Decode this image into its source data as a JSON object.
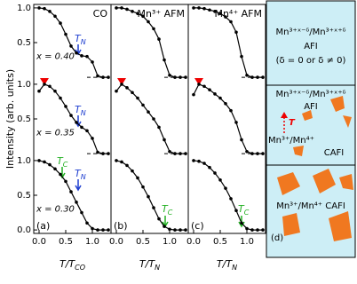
{
  "chart_data": [
    {
      "type": "line",
      "title": "CO",
      "panel_label": "(a)",
      "ylabel": "Intensity (arb. units)",
      "xlabel": {
        "text": "T/T",
        "sub": "CO"
      },
      "xlim": [
        -0.1,
        1.35
      ],
      "xticks": [
        {
          "value": 0,
          "label": "0.0"
        },
        0.5,
        {
          "value": 1,
          "label": "1.0"
        }
      ],
      "ylim": [
        -0.05,
        3.25
      ],
      "yticks": [
        {
          "value": 0,
          "label": "0.0"
        },
        0.5,
        {
          "value": 1,
          "label": "1.0"
        },
        {
          "value": 1.6,
          "label": "0.5"
        },
        {
          "value": 2.1,
          "label": "1.0"
        },
        {
          "value": 2.7,
          "label": "0.5"
        },
        {
          "value": 3.2,
          "label": "1.0"
        }
      ],
      "x": [
        0,
        0.1,
        0.2,
        0.3,
        0.4,
        0.5,
        0.6,
        0.7,
        0.8,
        0.9,
        1.0,
        1.1,
        1.2,
        1.3
      ],
      "series": [
        {
          "name": "x = 0.40",
          "color": "#000000",
          "offset": 2.2,
          "values": [
            1.0,
            0.99,
            0.95,
            0.88,
            0.78,
            0.62,
            0.45,
            0.35,
            0.31,
            0.3,
            0.22,
            0.02,
            0,
            0
          ]
        },
        {
          "name": "x = 0.35",
          "color": "#000000",
          "offset": 1.1,
          "values": [
            0.9,
            1.0,
            0.97,
            0.9,
            0.8,
            0.68,
            0.55,
            0.45,
            0.38,
            0.33,
            0.22,
            0.02,
            0,
            0
          ]
        },
        {
          "name": "x = 0.30",
          "color": "#000000",
          "offset": 0,
          "values": [
            1.0,
            0.98,
            0.94,
            0.88,
            0.8,
            0.7,
            0.55,
            0.4,
            0.25,
            0.1,
            0.02,
            0,
            0,
            0
          ]
        }
      ],
      "annotations": [
        {
          "text": "T",
          "sub": "N",
          "color": "#1f3fd0"
        },
        {
          "text": "T",
          "sub": "N",
          "color": "#1f3fd0"
        },
        {
          "text": "T",
          "sub": "C",
          "color": "#22b022"
        },
        {
          "text": "T",
          "sub": "N",
          "color": "#1f3fd0"
        }
      ]
    },
    {
      "type": "line",
      "title": "Mn³⁺ AFM",
      "panel_label": "(b)",
      "xlabel": {
        "text": "T/T",
        "sub": "N"
      },
      "xlim": [
        -0.1,
        1.35
      ],
      "xticks": [
        {
          "value": 0,
          "label": "0.0"
        },
        0.5,
        {
          "value": 1,
          "label": "1.0"
        }
      ],
      "ylim": [
        -0.05,
        3.25
      ],
      "x": [
        0,
        0.1,
        0.2,
        0.3,
        0.4,
        0.5,
        0.6,
        0.7,
        0.8,
        0.9,
        1.0,
        1.1,
        1.2,
        1.3
      ],
      "series": [
        {
          "color": "#000000",
          "offset": 2.2,
          "values": [
            1.0,
            1.0,
            0.98,
            0.95,
            0.92,
            0.88,
            0.8,
            0.7,
            0.55,
            0.25,
            0.03,
            0,
            0,
            0
          ]
        },
        {
          "color": "#000000",
          "offset": 1.1,
          "values": [
            0.9,
            1.0,
            0.95,
            0.88,
            0.8,
            0.7,
            0.6,
            0.5,
            0.38,
            0.2,
            0.03,
            0,
            0,
            0
          ]
        },
        {
          "color": "#000000",
          "offset": 0,
          "values": [
            1.0,
            0.98,
            0.93,
            0.85,
            0.75,
            0.62,
            0.48,
            0.32,
            0.16,
            0.05,
            0.01,
            0,
            0,
            0
          ]
        }
      ],
      "annotations": [
        {
          "text": "T",
          "sub": "C",
          "color": "#22b022"
        }
      ]
    },
    {
      "type": "line",
      "title": "Mn⁴⁺ AFM",
      "panel_label": "(c)",
      "xlabel": {
        "text": "T/T",
        "sub": "N"
      },
      "xlim": [
        -0.1,
        1.35
      ],
      "xticks": [
        {
          "value": 0,
          "label": "0.0"
        },
        0.5,
        {
          "value": 1,
          "label": "1.0"
        }
      ],
      "ylim": [
        -0.05,
        3.25
      ],
      "x": [
        0,
        0.1,
        0.2,
        0.3,
        0.4,
        0.5,
        0.6,
        0.7,
        0.8,
        0.9,
        1.0,
        1.1,
        1.2,
        1.3
      ],
      "series": [
        {
          "color": "#000000",
          "offset": 2.2,
          "values": [
            1.0,
            1.0,
            0.99,
            0.97,
            0.95,
            0.92,
            0.87,
            0.8,
            0.65,
            0.3,
            0.03,
            0,
            0,
            0
          ]
        },
        {
          "color": "#000000",
          "offset": 1.1,
          "values": [
            0.85,
            1.0,
            0.97,
            0.92,
            0.86,
            0.8,
            0.72,
            0.62,
            0.45,
            0.2,
            0.03,
            0,
            0,
            0
          ]
        },
        {
          "color": "#000000",
          "offset": 0,
          "values": [
            1.0,
            0.99,
            0.96,
            0.9,
            0.82,
            0.72,
            0.6,
            0.45,
            0.28,
            0.1,
            0.02,
            0,
            0,
            0
          ]
        }
      ],
      "annotations": [
        {
          "text": "T",
          "sub": "C",
          "color": "#22b022"
        }
      ]
    }
  ],
  "panel_d": {
    "top": {
      "line1": "Mn³⁺ˣ⁻ᵟ/Mn³⁺ˣ⁺ᵟ",
      "line2": "AFI",
      "line3": "(δ = 0 or δ ≠ 0)"
    },
    "middle": {
      "line1": "Mn³⁺ˣ⁻ᵟ/Mn³⁺ˣ⁺ᵟ",
      "line2": "AFI",
      "arrow": "T",
      "line3": "Mn³⁺/Mn⁴⁺",
      "line4": "CAFI"
    },
    "bottom": {
      "line1": "Mn³⁺/Mn⁴⁺  CAFI"
    },
    "label": "(d)"
  }
}
